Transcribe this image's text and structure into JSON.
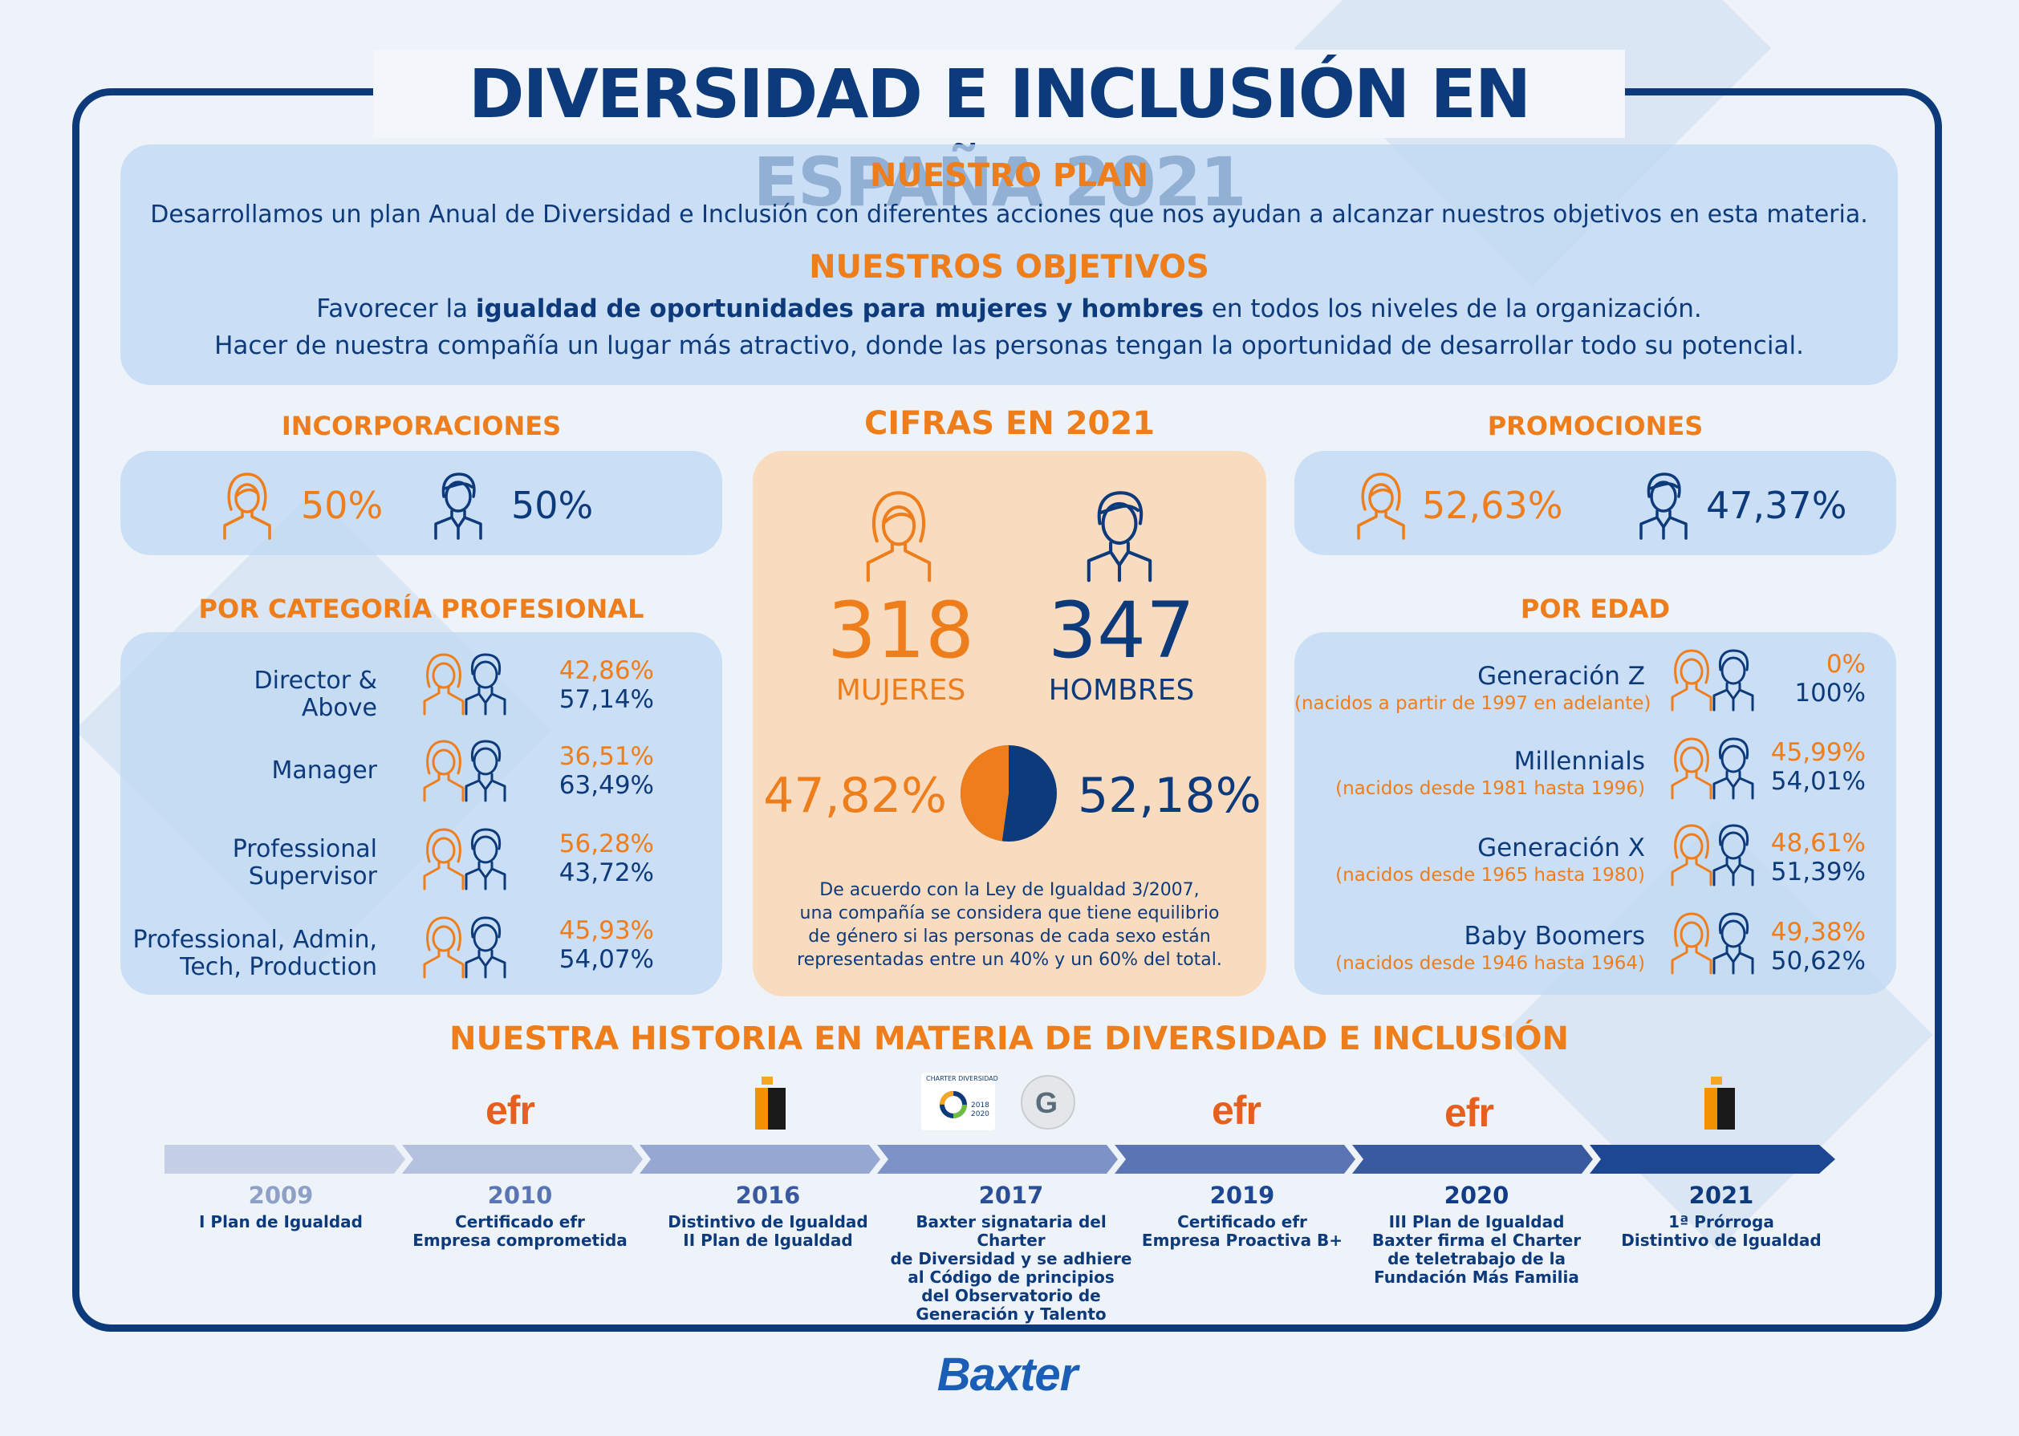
{
  "title": "DIVERSIDAD E INCLUSIÓN EN ESPAÑA 2021",
  "plan": {
    "heading": "NUESTRO PLAN",
    "text": "Desarrollamos un plan Anual de Diversidad e Inclusión con diferentes acciones que nos ayudan a alcanzar nuestros objetivos en esta materia."
  },
  "objetivos": {
    "heading": "NUESTROS OBJETIVOS",
    "line1_before": "Favorecer la ",
    "line1_bold": "igualdad de oportunidades para mujeres y hombres",
    "line1_after": " en todos los niveles de la organización.",
    "line2": "Hacer de nuestra compañía un lugar más atractivo, donde las personas tengan la oportunidad de desarrollar todo su potencial."
  },
  "incorporaciones": {
    "heading": "INCORPORACIONES",
    "women": "50%",
    "men": "50%"
  },
  "promociones": {
    "heading": "PROMOCIONES",
    "women": "52,63%",
    "men": "47,37%"
  },
  "cifras": {
    "heading": "CIFRAS EN 2021",
    "women_count": "318",
    "men_count": "347",
    "women_label": "MUJERES",
    "men_label": "HOMBRES",
    "women_pct": "47,82%",
    "men_pct": "52,18%",
    "women_share": 47.82,
    "note_lines": [
      "De acuerdo con la Ley de Igualdad 3/2007,",
      "una compañía se considera que tiene equilibrio",
      "de género si las personas de cada sexo están",
      "representadas entre un 40% y un 60% del total."
    ]
  },
  "categoria": {
    "heading": "POR CATEGORÍA PROFESIONAL",
    "rows": [
      {
        "label1": "Director &",
        "label2": "Above",
        "women": "42,86%",
        "men": "57,14%"
      },
      {
        "label1": "Manager",
        "label2": "",
        "women": "36,51%",
        "men": "63,49%"
      },
      {
        "label1": "Professional",
        "label2": "Supervisor",
        "women": "56,28%",
        "men": "43,72%"
      },
      {
        "label1": "Professional, Admin,",
        "label2": "Tech, Production",
        "women": "45,93%",
        "men": "54,07%"
      }
    ]
  },
  "edad": {
    "heading": "POR EDAD",
    "rows": [
      {
        "label": "Generación Z",
        "sub": "(nacidos a partir de 1997 en adelante)",
        "women": "0%",
        "men": "100%"
      },
      {
        "label": "Millennials",
        "sub": "(nacidos desde 1981 hasta 1996)",
        "women": "45,99%",
        "men": "54,01%"
      },
      {
        "label": "Generación X",
        "sub": "(nacidos desde 1965 hasta 1980)",
        "women": "48,61%",
        "men": "51,39%"
      },
      {
        "label": "Baby Boomers",
        "sub": "(nacidos desde 1946 hasta 1964)",
        "women": "49,38%",
        "men": "50,62%"
      }
    ]
  },
  "historia": {
    "heading": "NUESTRA HISTORIA EN MATERIA DE DIVERSIDAD E INCLUSIÓN",
    "logo_efr": "efr",
    "charter_text": "CHARTER DIVERSIDAD",
    "charter_years": "2018\n2020",
    "events": [
      {
        "year": "2009",
        "desc": [
          "I Plan de Igualdad"
        ]
      },
      {
        "year": "2010",
        "desc": [
          "Certificado efr",
          "Empresa comprometida"
        ]
      },
      {
        "year": "2016",
        "desc": [
          "Distintivo de Igualdad",
          "II Plan de Igualdad"
        ]
      },
      {
        "year": "2017",
        "desc": [
          "Baxter signataria del Charter",
          "de Diversidad y se adhiere",
          "al Código de principios",
          "del Observatorio de",
          "Generación y Talento"
        ]
      },
      {
        "year": "2019",
        "desc": [
          "Certificado efr",
          "Empresa Proactiva B+"
        ]
      },
      {
        "year": "2020",
        "desc": [
          "III Plan de Igualdad",
          "Baxter firma el Charter",
          "de teletrabajo de la",
          "Fundación Más Familia"
        ]
      },
      {
        "year": "2021",
        "desc": [
          "1ª Prórroga",
          "Distintivo de Igualdad"
        ]
      }
    ]
  },
  "brand": "Baxter",
  "colors": {
    "orange": "#ee7d1c",
    "navy": "#0d3a7a",
    "panel": "#bed8f3",
    "peach": "#f9dcc0"
  }
}
